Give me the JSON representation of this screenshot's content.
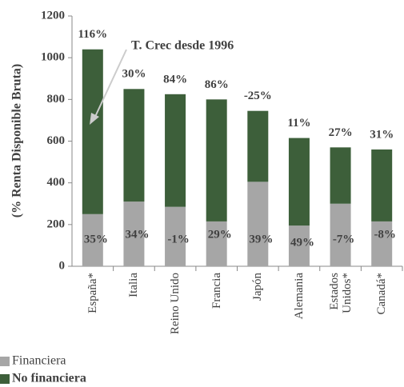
{
  "chart_data": {
    "type": "stacked_bar",
    "ylabel": "(% Renta Disponible Bruta)",
    "annotation": "T. Crec desde 1996",
    "categories": [
      "España*",
      "Italia",
      "Reino Unido",
      "Francia",
      "Japón",
      "Alemania",
      "Estados Unidos*",
      "Canadá*"
    ],
    "series": [
      {
        "name": "Financiera",
        "color": "#a6a6a6",
        "values": [
          250,
          310,
          285,
          215,
          405,
          195,
          300,
          215
        ]
      },
      {
        "name": "No financiera",
        "color": "#3d5f3a",
        "values": [
          790,
          540,
          540,
          585,
          340,
          420,
          270,
          345
        ]
      }
    ],
    "top_labels": [
      "116%",
      "30%",
      "84%",
      "86%",
      "-25%",
      "11%",
      "27%",
      "31%"
    ],
    "bottom_labels": [
      "35%",
      "34%",
      "-1%",
      "29%",
      "39%",
      "49%",
      "-7%",
      "-8%"
    ],
    "ylim": [
      0,
      1200
    ],
    "yticks": [
      0,
      200,
      400,
      600,
      800,
      1000,
      1200
    ]
  }
}
